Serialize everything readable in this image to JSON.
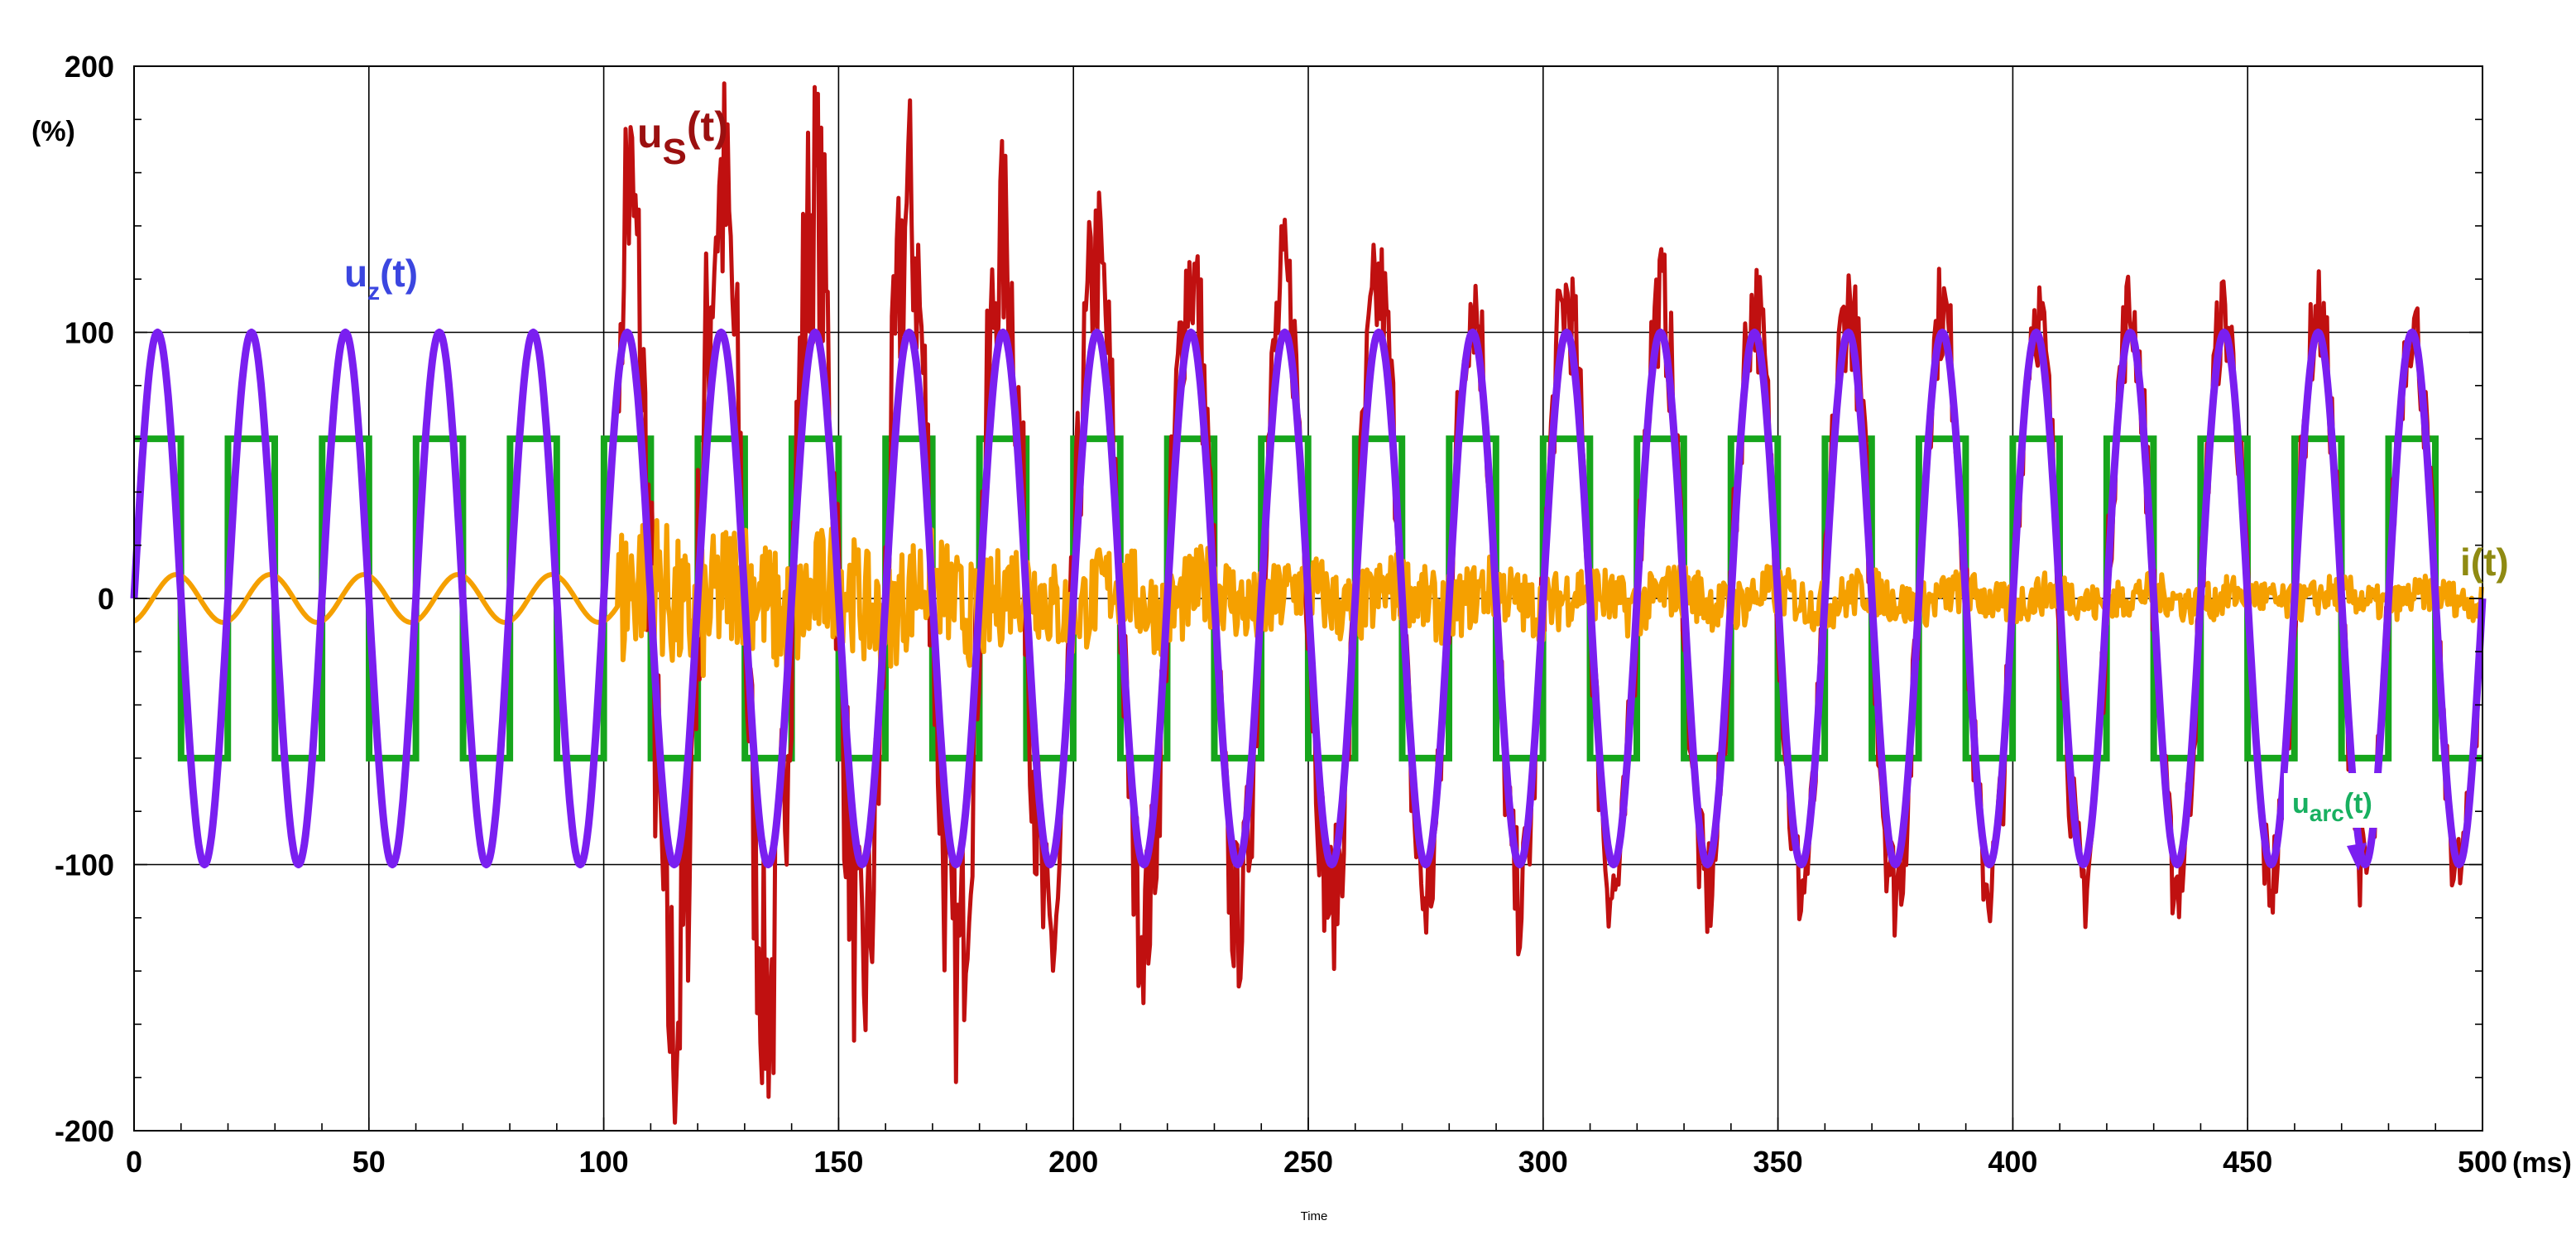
{
  "chart_data": {
    "type": "line",
    "xlabel": "Time",
    "x_unit": "(ms)",
    "y_unit": "(%)",
    "xlim": [
      0,
      500
    ],
    "ylim": [
      -200,
      200
    ],
    "x_ticks": [
      0,
      50,
      100,
      150,
      200,
      250,
      300,
      350,
      400,
      450,
      500
    ],
    "y_ticks": [
      -200,
      -100,
      0,
      100,
      200
    ],
    "grid": true,
    "series": [
      {
        "name": "u_arc(t)",
        "label_main": "u",
        "label_sub": "arc",
        "label_tail": "(t)",
        "color": "#16a51c",
        "shape": "square wave, 50 Hz",
        "amplitude": 60,
        "period_ms": 20
      },
      {
        "name": "u_s(t)",
        "label_main": "u",
        "label_sub": "S",
        "label_tail": "(t)",
        "color": "#c01010",
        "shape": "arcing voltage, sine with noisy overshoot after arc ignition",
        "amplitude_before_arc": 100,
        "arc_start_ms": 103,
        "peak_ms": [
          104,
          113,
          124,
          134,
          144,
          154,
          164,
          174,
          184,
          194,
          204,
          214,
          224,
          234,
          244,
          254,
          264,
          274,
          284,
          294,
          304,
          314,
          324,
          334,
          344,
          354,
          364,
          374,
          384,
          394,
          404,
          414,
          424,
          434,
          444,
          454,
          464,
          474,
          484,
          494
        ],
        "peak_values": [
          152,
          -158,
          153,
          -150,
          150,
          -142,
          145,
          -140,
          134,
          -132,
          126,
          -122,
          122,
          -120,
          117,
          -115,
          115,
          -113,
          113,
          -112,
          112,
          -110,
          112,
          -110,
          110,
          -108,
          110,
          -108,
          108,
          -107,
          108,
          -107,
          107,
          -106,
          106,
          -105,
          106,
          -104,
          104,
          -103
        ]
      },
      {
        "name": "u_z(t)",
        "label_main": "u",
        "label_sub": "z",
        "label_tail": "(t)",
        "color": "#7a1ff0",
        "label_color": "#3b46e0",
        "shape": "sine, 50 Hz",
        "amplitude": 100,
        "period_ms": 20
      },
      {
        "name": "i(t)",
        "label_main": "i(t)",
        "color": "#f5a000",
        "label_color": "#8f8a12",
        "shape": "current, small sine then noisy band after arc ignition",
        "amplitude_before_arc": 9,
        "arc_start_ms": 103,
        "envelope_ms": [
          103,
          110,
          125,
          150,
          175,
          200,
          250,
          300,
          350,
          400,
          450,
          500
        ],
        "envelope_values": [
          40,
          35,
          32,
          28,
          25,
          22,
          18,
          15,
          12,
          10,
          9,
          8
        ]
      }
    ]
  }
}
